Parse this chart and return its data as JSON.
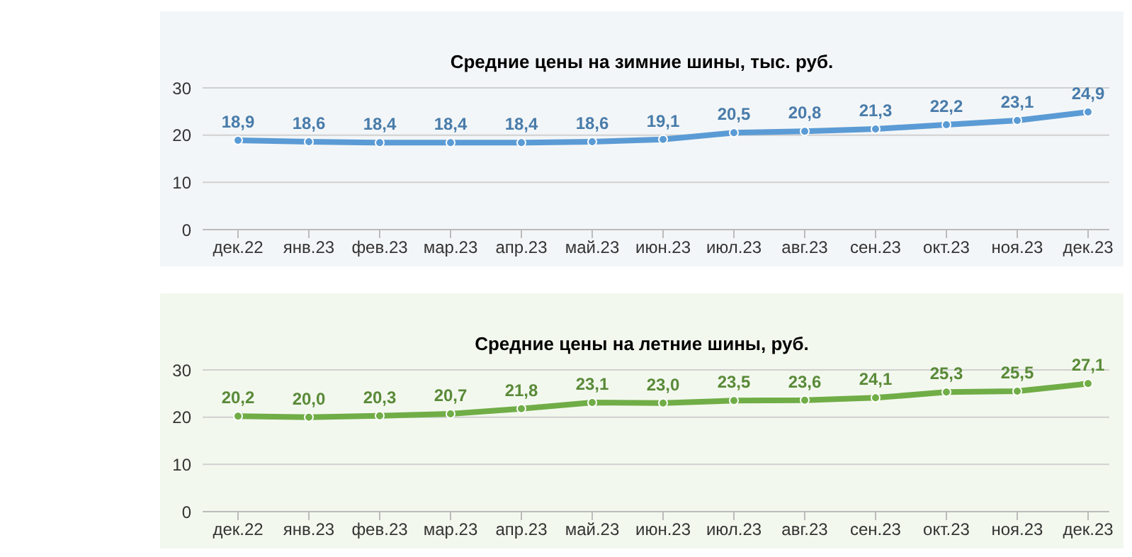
{
  "chart_data": [
    {
      "type": "line",
      "title": "Средние цены на зимние шины, тыс. руб.",
      "categories": [
        "дек.22",
        "янв.23",
        "фев.23",
        "мар.23",
        "апр.23",
        "май.23",
        "июн.23",
        "июл.23",
        "авг.23",
        "сен.23",
        "окт.23",
        "ноя.23",
        "дек.23"
      ],
      "series": [
        {
          "color": "#5b9bd5",
          "values": [
            18.9,
            18.6,
            18.4,
            18.4,
            18.4,
            18.6,
            19.1,
            20.5,
            20.8,
            21.3,
            22.2,
            23.1,
            24.9
          ],
          "value_labels": [
            "18,9",
            "18,6",
            "18,4",
            "18,4",
            "18,4",
            "18,6",
            "19,1",
            "20,5",
            "20,8",
            "21,3",
            "22,2",
            "23,1",
            "24,9"
          ]
        }
      ],
      "ylim": [
        0,
        30
      ],
      "yticks": [
        0,
        10,
        20,
        30
      ],
      "grid": "y",
      "legend": false,
      "marker": "circle",
      "line_style": "solid"
    },
    {
      "type": "line",
      "title": "Средние цены на летние шины, руб.",
      "categories": [
        "дек.22",
        "янв.23",
        "фев.23",
        "мар.23",
        "апр.23",
        "май.23",
        "июн.23",
        "июл.23",
        "авг.23",
        "сен.23",
        "окт.23",
        "ноя.23",
        "дек.23"
      ],
      "series": [
        {
          "color": "#70ad47",
          "values": [
            20.2,
            20.0,
            20.3,
            20.7,
            21.8,
            23.1,
            23.0,
            23.5,
            23.6,
            24.1,
            25.3,
            25.5,
            27.1
          ],
          "value_labels": [
            "20,2",
            "20,0",
            "20,3",
            "20,7",
            "21,8",
            "23,1",
            "23,0",
            "23,5",
            "23,6",
            "24,1",
            "25,3",
            "25,5",
            "27,1"
          ]
        }
      ],
      "ylim": [
        0,
        30
      ],
      "yticks": [
        0,
        10,
        20,
        30
      ],
      "grid": "y",
      "legend": false,
      "marker": "circle",
      "line_style": "solid"
    }
  ]
}
